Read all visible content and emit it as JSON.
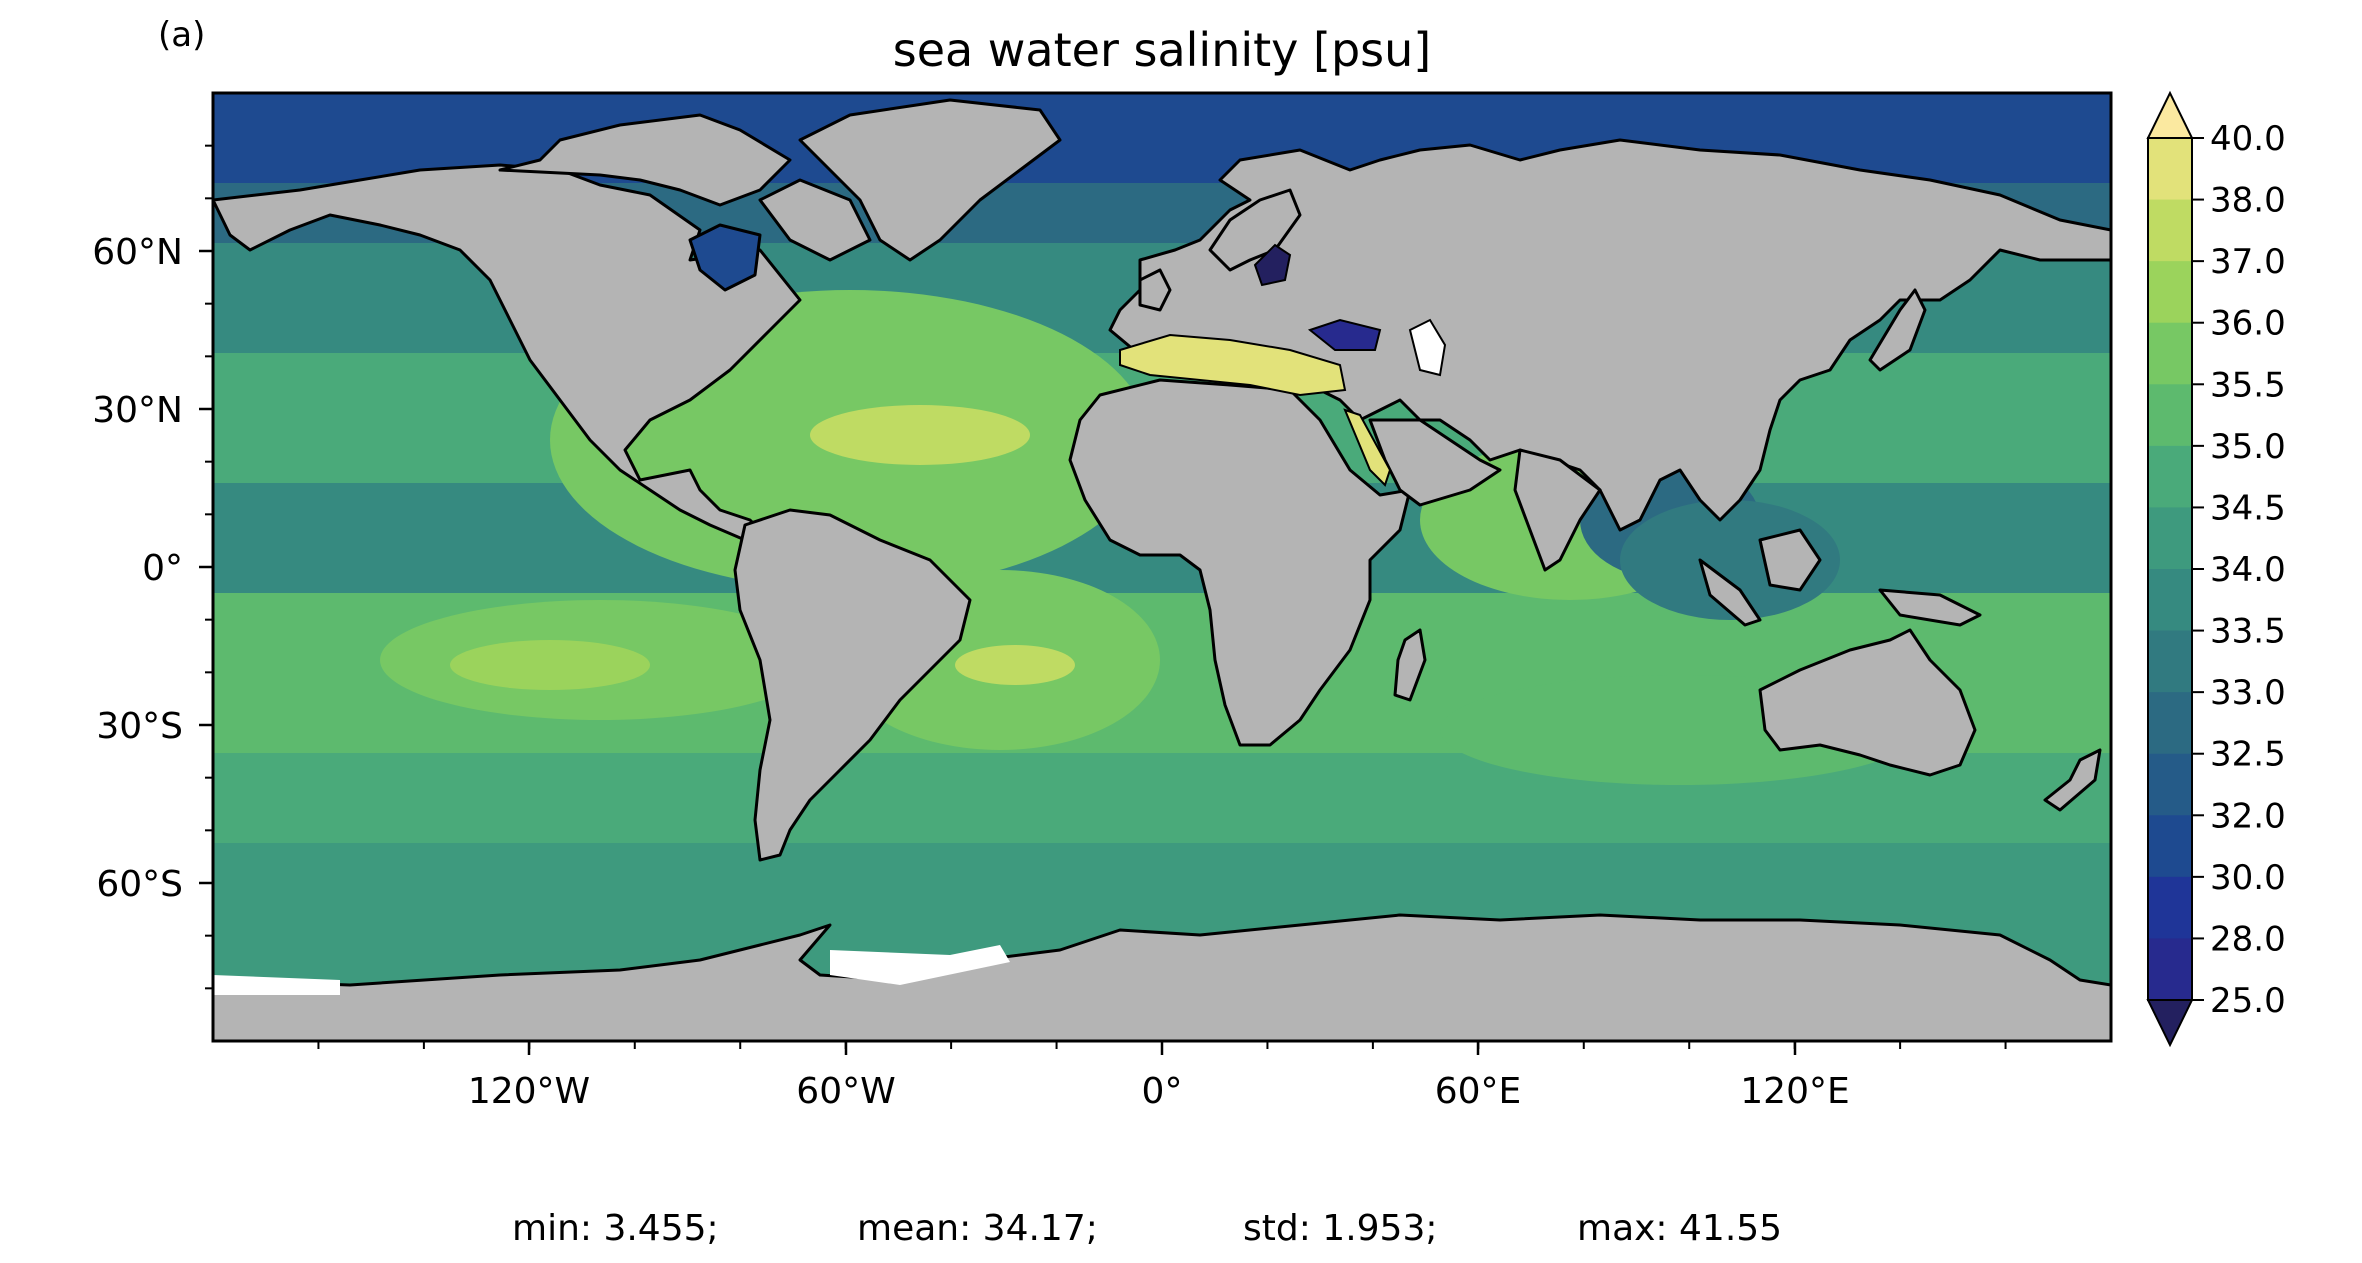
{
  "panel_label": "(a)",
  "title": "sea water salinity [psu]",
  "x_ticks": [
    "120°W",
    "60°W",
    "0°",
    "60°E",
    "120°E"
  ],
  "y_ticks": [
    "60°N",
    "30°N",
    "0°",
    "30°S",
    "60°S"
  ],
  "colorbar": {
    "levels": [
      "40.0",
      "38.0",
      "37.0",
      "36.0",
      "35.5",
      "35.0",
      "34.5",
      "34.0",
      "33.5",
      "33.0",
      "32.5",
      "32.0",
      "30.0",
      "28.0",
      "25.0"
    ],
    "colors": [
      "#fbe9a0",
      "#e2e27a",
      "#bfdb63",
      "#9bd35c",
      "#77c864",
      "#5dba6e",
      "#4aaa7a",
      "#3e9a7e",
      "#368a80",
      "#317a80",
      "#2c6a82",
      "#255b88",
      "#1e4a90",
      "#1f3598",
      "#272a8e",
      "#23205f"
    ]
  },
  "colors": {
    "land": "#b4b4b4",
    "ocean": "#4aaa7a",
    "coast": "#000000"
  },
  "stats": {
    "min": "min: 3.455;",
    "mean": "mean: 34.17;",
    "std": "std: 1.953;",
    "max": "max: 41.55"
  }
}
